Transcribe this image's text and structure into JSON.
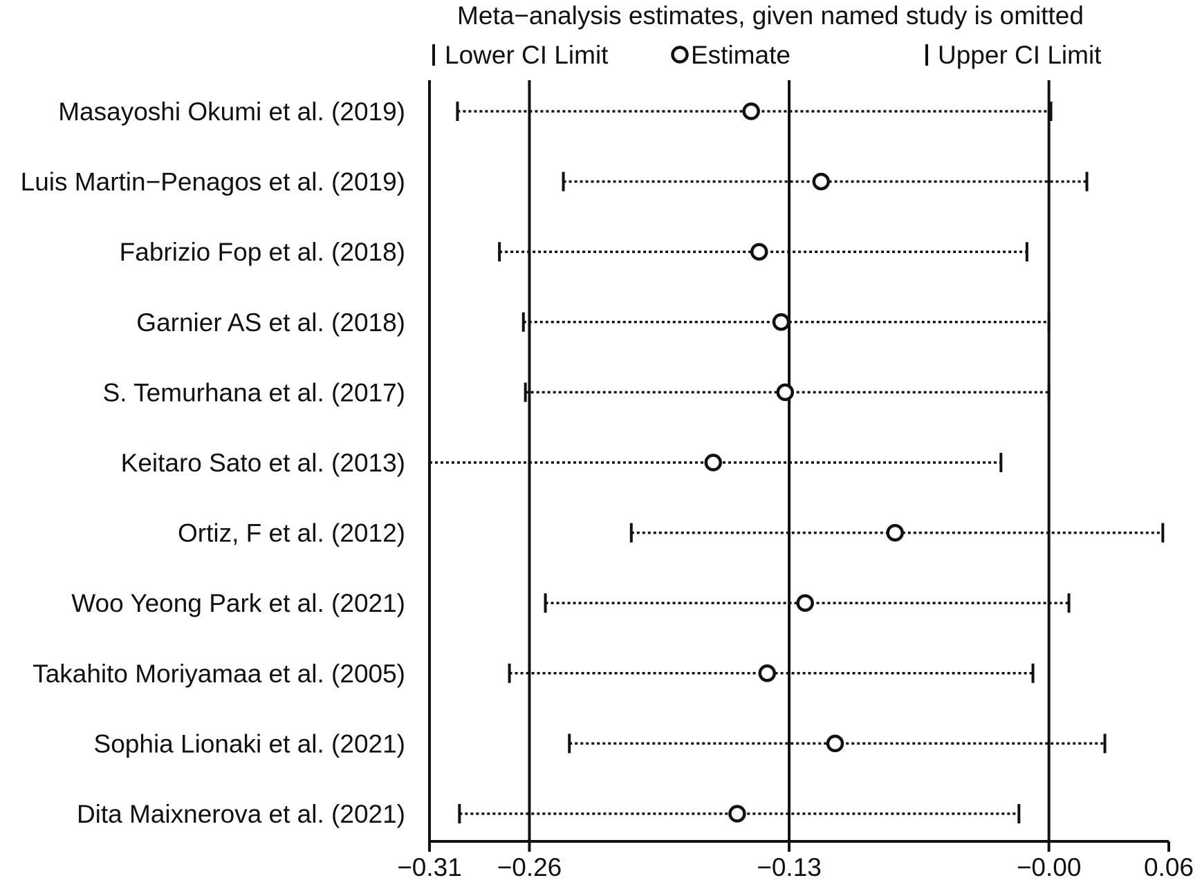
{
  "chart_data": {
    "type": "scatter",
    "title": "Meta−analysis estimates, given named study is omitted",
    "legend": {
      "position": "top",
      "items": [
        {
          "key": "lower",
          "label": "Lower CI Limit"
        },
        {
          "key": "estimate",
          "label": "Estimate"
        },
        {
          "key": "upper",
          "label": "Upper CI Limit"
        }
      ]
    },
    "xlim": [
      -0.31,
      0.06
    ],
    "ticks": [
      {
        "value": -0.31,
        "label": "−0.31"
      },
      {
        "value": -0.26,
        "label": "−0.26"
      },
      {
        "value": -0.13,
        "label": "−0.13"
      },
      {
        "value": 0.0,
        "label": "−0.00"
      },
      {
        "value": 0.06,
        "label": "0.06"
      }
    ],
    "reference_lines": [
      -0.26,
      -0.13,
      0.0
    ],
    "studies": [
      {
        "label": "Masayoshi Okumi et al. (2019)",
        "lower": -0.296,
        "estimate": -0.149,
        "upper": 0.001
      },
      {
        "label": "Luis Martin−Penagos et al. (2019)",
        "lower": -0.243,
        "estimate": -0.114,
        "upper": 0.019
      },
      {
        "label": "Fabrizio Fop et al. (2018)",
        "lower": -0.275,
        "estimate": -0.145,
        "upper": -0.011
      },
      {
        "label": "Garnier AS et al. (2018)",
        "lower": -0.263,
        "estimate": -0.134,
        "upper": 0.0
      },
      {
        "label": "S. Temurhana et al. (2017)",
        "lower": -0.262,
        "estimate": -0.132,
        "upper": 0.0
      },
      {
        "label": "Keitaro Sato et al. (2013)",
        "lower": -0.31,
        "estimate": -0.168,
        "upper": -0.024
      },
      {
        "label": "Ortiz, F et al. (2012)",
        "lower": -0.209,
        "estimate": -0.077,
        "upper": 0.057
      },
      {
        "label": "Woo Yeong Park et al. (2021)",
        "lower": -0.252,
        "estimate": -0.122,
        "upper": 0.01
      },
      {
        "label": "Takahito Moriyamaa et al. (2005)",
        "lower": -0.27,
        "estimate": -0.141,
        "upper": -0.008
      },
      {
        "label": "Sophia Lionaki et al. (2021)",
        "lower": -0.24,
        "estimate": -0.107,
        "upper": 0.028
      },
      {
        "label": "Dita Maixnerova et al. (2021)",
        "lower": -0.295,
        "estimate": -0.156,
        "upper": -0.015
      }
    ]
  }
}
